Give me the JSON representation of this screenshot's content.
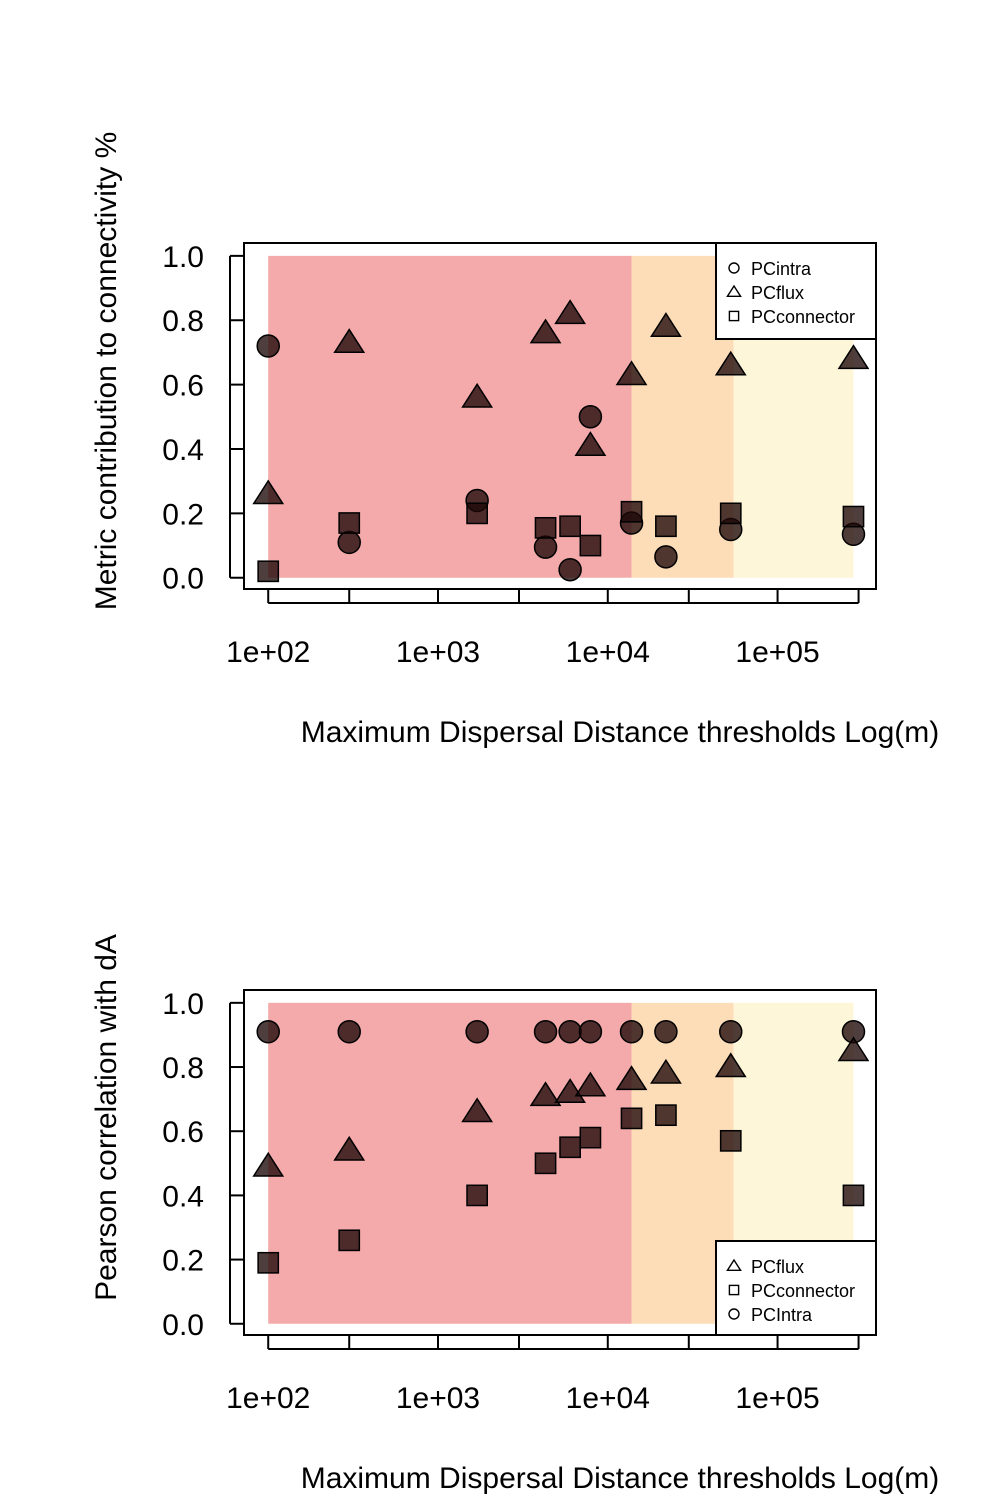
{
  "chart_data": [
    {
      "type": "scatter",
      "title": "",
      "xlabel": "Maximum Dispersal Distance thresholds Log(m)",
      "ylabel": "Metric contribution to connectivity %",
      "x_scale": "log",
      "xlim": [
        72,
        380000
      ],
      "ylim": [
        -0.035,
        1.04
      ],
      "x_ticks_major": [
        "1e+02",
        "1e+03",
        "1e+04",
        "1e+05"
      ],
      "y_ticks": [
        "0.0",
        "0.2",
        "0.4",
        "0.6",
        "0.8",
        "1.0"
      ],
      "grid": false,
      "legend_position": "top-right",
      "bands": [
        {
          "from": 100,
          "to": 13800,
          "color": "#f4aaaa"
        },
        {
          "from": 13800,
          "to": 55000,
          "color": "#fddcb8"
        },
        {
          "from": 55000,
          "to": 280000,
          "color": "#fef6d8"
        }
      ],
      "x": [
        100,
        300,
        1700,
        4300,
        6000,
        7900,
        13800,
        22000,
        53000,
        280000
      ],
      "series": [
        {
          "name": "PCintra",
          "marker": "circle",
          "values": [
            0.72,
            0.11,
            0.24,
            0.095,
            0.025,
            0.5,
            0.17,
            0.065,
            0.15,
            0.135
          ]
        },
        {
          "name": "PCflux",
          "marker": "triangle",
          "values": [
            0.26,
            0.73,
            0.56,
            0.76,
            0.82,
            0.41,
            0.63,
            0.78,
            0.66,
            0.68
          ]
        },
        {
          "name": "PCconnector",
          "marker": "square",
          "values": [
            0.02,
            0.17,
            0.2,
            0.155,
            0.16,
            0.1,
            0.205,
            0.16,
            0.2,
            0.19
          ]
        }
      ],
      "legend_order": [
        "PCintra",
        "PCflux",
        "PCconnector"
      ]
    },
    {
      "type": "scatter",
      "title": "",
      "xlabel": "Maximum Dispersal Distance thresholds Log(m)",
      "ylabel": "Pearson correlation with dA",
      "x_scale": "log",
      "xlim": [
        72,
        380000
      ],
      "ylim": [
        -0.035,
        1.04
      ],
      "x_ticks_major": [
        "1e+02",
        "1e+03",
        "1e+04",
        "1e+05"
      ],
      "y_ticks": [
        "0.0",
        "0.2",
        "0.4",
        "0.6",
        "0.8",
        "1.0"
      ],
      "grid": false,
      "legend_position": "bottom-right",
      "bands": [
        {
          "from": 100,
          "to": 13800,
          "color": "#f4aaaa"
        },
        {
          "from": 13800,
          "to": 55000,
          "color": "#fddcb8"
        },
        {
          "from": 55000,
          "to": 280000,
          "color": "#fef6d8"
        }
      ],
      "x": [
        100,
        300,
        1700,
        4300,
        6000,
        7900,
        13800,
        22000,
        53000,
        280000
      ],
      "series": [
        {
          "name": "PCIntra",
          "marker": "circle",
          "values": [
            0.91,
            0.91,
            0.91,
            0.91,
            0.91,
            0.91,
            0.91,
            0.91,
            0.91,
            0.91
          ]
        },
        {
          "name": "PCflux",
          "marker": "triangle",
          "values": [
            0.49,
            0.54,
            0.66,
            0.71,
            0.72,
            0.74,
            0.76,
            0.78,
            0.8,
            0.85
          ]
        },
        {
          "name": "PCconnector",
          "marker": "square",
          "values": [
            0.19,
            0.26,
            0.4,
            0.5,
            0.55,
            0.58,
            0.64,
            0.65,
            0.57,
            0.4
          ]
        }
      ],
      "legend_order": [
        "PCflux",
        "PCconnector",
        "PCIntra"
      ]
    }
  ]
}
